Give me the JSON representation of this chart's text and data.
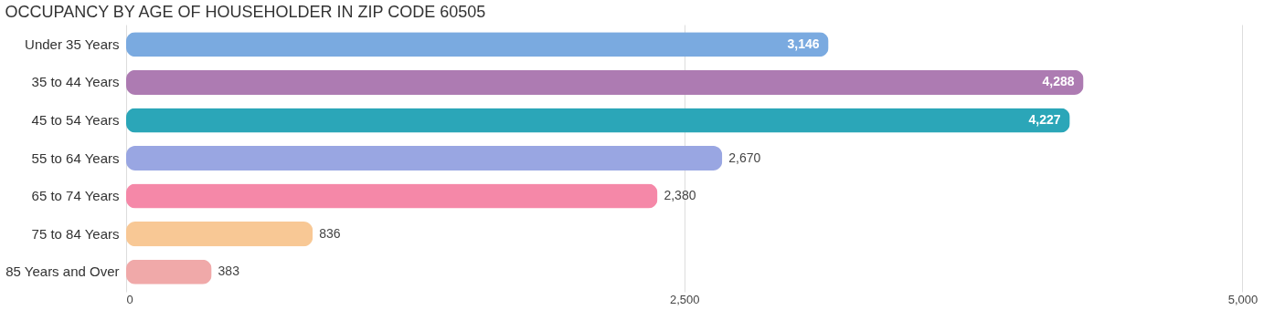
{
  "chart_data": {
    "type": "bar",
    "orientation": "horizontal",
    "title": "OCCUPANCY BY AGE OF HOUSEHOLDER IN ZIP CODE 60505",
    "categories": [
      "Under 35 Years",
      "35 to 44 Years",
      "45 to 54 Years",
      "55 to 64 Years",
      "65 to 74 Years",
      "75 to 84 Years",
      "85 Years and Over"
    ],
    "values": [
      3146,
      4288,
      4227,
      2670,
      2380,
      836,
      383
    ],
    "value_labels": [
      "3,146",
      "4,288",
      "4,227",
      "2,670",
      "2,380",
      "836",
      "383"
    ],
    "colors": [
      "#7aaae0",
      "#ad7bb2",
      "#2ba6b8",
      "#99a6e2",
      "#f588a8",
      "#f8c895",
      "#f0a9a9"
    ],
    "xlim": [
      0,
      5170
    ],
    "xticks": [
      0,
      {
        "value": 2500,
        "label": "2,500"
      },
      {
        "value": 5000,
        "label": "5,000"
      }
    ],
    "grid": "x"
  }
}
